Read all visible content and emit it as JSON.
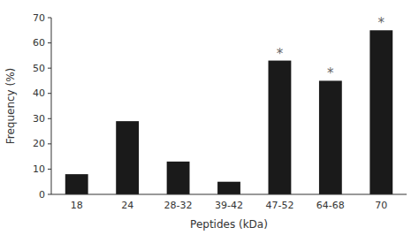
{
  "chart_data": {
    "type": "bar",
    "xlabel": "Peptides (kDa)",
    "ylabel": "Frequency (%)",
    "categories": [
      "18",
      "24",
      "28-32",
      "39-42",
      "47-52",
      "64-68",
      "70"
    ],
    "values": [
      8,
      29,
      13,
      5,
      53,
      45,
      65
    ],
    "color": "#1a1a1a",
    "ylim": [
      0,
      70
    ],
    "yticks": [
      0,
      10,
      20,
      30,
      40,
      50,
      60,
      70
    ],
    "grid": false,
    "annotations": [
      {
        "text": "*",
        "category": "47-52",
        "color": "#666666"
      },
      {
        "text": "*",
        "category": "64-68",
        "color": "#666666"
      },
      {
        "text": "*",
        "category": "70",
        "color": "#666666"
      }
    ]
  }
}
